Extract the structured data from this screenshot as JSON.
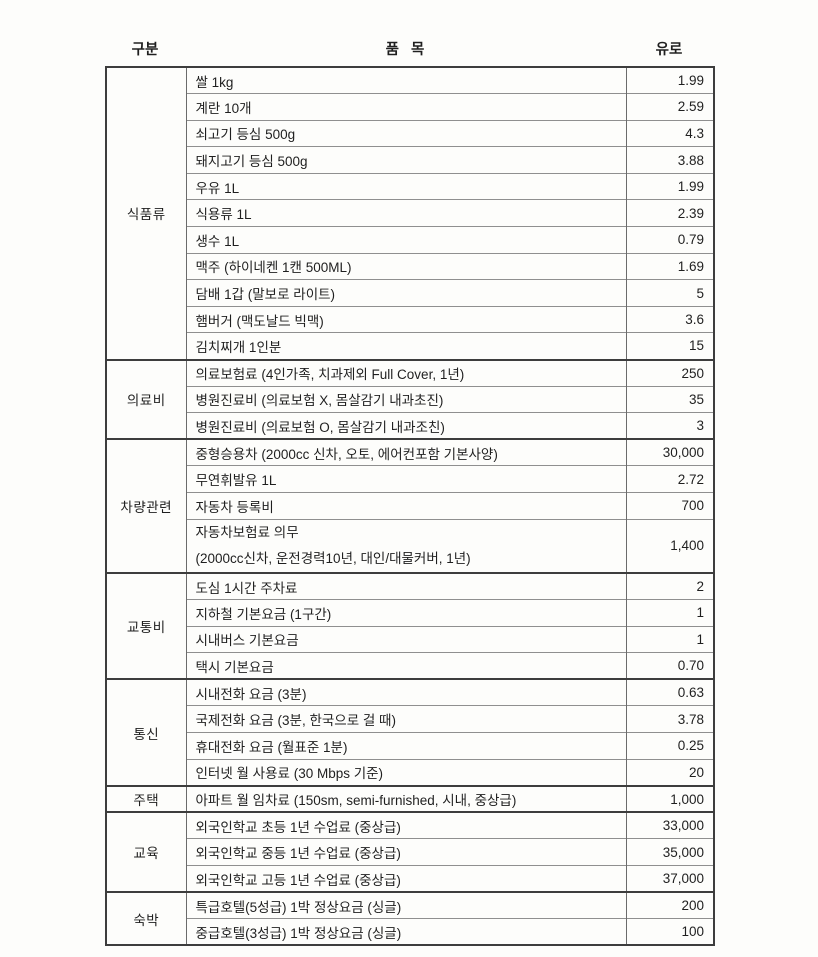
{
  "page": {
    "background": "#fdfdfb",
    "text_color": "#1f1f1f",
    "border_dark": "#3d3d3d",
    "border_light": "#8f8f8f",
    "currency_note": "prices shown in euros"
  },
  "header": {
    "col_category": "구분",
    "col_item": "품   목",
    "col_price": "유로"
  },
  "table": {
    "groups": [
      {
        "category": "식품류",
        "items": [
          {
            "name": "쌀 1kg",
            "price": "1.99"
          },
          {
            "name": "계란 10개",
            "price": "2.59"
          },
          {
            "name": "쇠고기 등심 500g",
            "price": "4.3"
          },
          {
            "name": "돼지고기 등심 500g",
            "price": "3.88"
          },
          {
            "name": "우유 1L",
            "price": "1.99"
          },
          {
            "name": "식용류 1L",
            "price": "2.39"
          },
          {
            "name": "생수 1L",
            "price": "0.79"
          },
          {
            "name": "맥주 (하이네켄 1캔 500ML)",
            "price": "1.69"
          },
          {
            "name": "담배 1갑 (말보로 라이트)",
            "price": "5"
          },
          {
            "name": "햄버거 (맥도날드 빅맥)",
            "price": "3.6"
          },
          {
            "name": "김치찌개 1인분",
            "price": "15"
          }
        ]
      },
      {
        "category": "의료비",
        "items": [
          {
            "name": "의료보험료 (4인가족, 치과제외 Full Cover, 1년)",
            "price": "250"
          },
          {
            "name": "병원진료비 (의료보험 X, 몸살감기 내과초진)",
            "price": "35"
          },
          {
            "name": "병원진료비 (의료보험 O, 몸살감기 내과조친)",
            "price": "3"
          }
        ]
      },
      {
        "category": "차량관련",
        "items": [
          {
            "name": "중형승용차 (2000cc 신차, 오토, 에어컨포함 기본사양)",
            "price": "30,000"
          },
          {
            "name": "무연휘발유 1L",
            "price": "2.72"
          },
          {
            "name": "자동차 등록비",
            "price": "700"
          },
          {
            "name": "자동차보험료 의무",
            "name2": "(2000cc신차, 운전경력10년, 대인/대물커버, 1년)",
            "price": "1,400",
            "double": true
          }
        ]
      },
      {
        "category": "교통비",
        "items": [
          {
            "name": "도심 1시간 주차료",
            "price": "2"
          },
          {
            "name": "지하철 기본요금 (1구간)",
            "price": "1"
          },
          {
            "name": "시내버스 기본요금",
            "price": "1"
          },
          {
            "name": "택시 기본요금",
            "price": "0.70"
          }
        ]
      },
      {
        "category": "통신",
        "items": [
          {
            "name": "시내전화 요금 (3분)",
            "price": "0.63"
          },
          {
            "name": "국제전화 요금 (3분, 한국으로 걸 때)",
            "price": "3.78"
          },
          {
            "name": "휴대전화 요금 (월표준 1분)",
            "price": "0.25"
          },
          {
            "name": "인터넷 월 사용료 (30 Mbps 기준)",
            "price": "20"
          }
        ]
      },
      {
        "category": "주택",
        "items": [
          {
            "name": "아파트 월 임차료 (150sm, semi-furnished, 시내, 중상급)",
            "price": "1,000"
          }
        ]
      },
      {
        "category": "교육",
        "items": [
          {
            "name": "외국인학교 초등 1년 수업료 (중상급)",
            "price": "33,000"
          },
          {
            "name": "외국인학교 중등 1년 수업료 (중상급)",
            "price": "35,000"
          },
          {
            "name": "외국인학교 고등 1년 수업료 (중상급)",
            "price": "37,000"
          }
        ]
      },
      {
        "category": "숙박",
        "items": [
          {
            "name": "특급호텔(5성급) 1박 정상요금 (싱글)",
            "price": "200"
          },
          {
            "name": "중급호텔(3성급) 1박 정상요금 (싱글)",
            "price": "100"
          }
        ]
      }
    ]
  }
}
